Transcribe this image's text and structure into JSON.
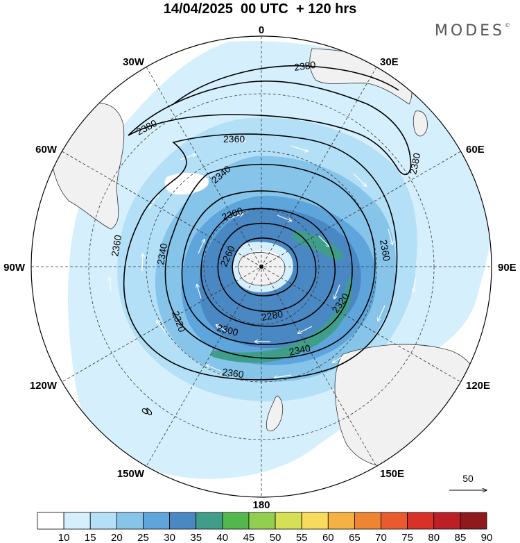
{
  "title": "14/04/2025  00 UTC  + 120 hrs",
  "brand": "MODES",
  "brand_mark": "©",
  "longitude_labels": {
    "n0": "0",
    "n30e": "30E",
    "n60e": "60E",
    "n90e": "90E",
    "n120e": "120E",
    "n150e": "150E",
    "n180": "180",
    "n150w": "150W",
    "n120w": "120W",
    "n90w": "90W",
    "n60w": "60W",
    "n30w": "30W"
  },
  "contour_labels": {
    "c2380a": "2380",
    "c2380b": "2380",
    "c2380c": "2380",
    "c2360a": "2360",
    "c2360b": "2360",
    "c2360c": "2360",
    "c2360d": "2360",
    "c2340a": "2340",
    "c2340b": "2340",
    "c2340c": "2340",
    "c2320a": "2320",
    "c2320b": "2320",
    "c2300a": "2300",
    "c2300b": "2300",
    "c2280": "2280",
    "c2260": "2260",
    "c0": "0"
  },
  "vector_reference": {
    "value": "50"
  },
  "colorbar": {
    "labels": [
      "10",
      "15",
      "20",
      "25",
      "30",
      "35",
      "40",
      "45",
      "50",
      "55",
      "60",
      "65",
      "70",
      "75",
      "80",
      "85",
      "90"
    ],
    "colors": [
      "#ffffff",
      "#d5effc",
      "#b3e0f7",
      "#86c4ea",
      "#5ea5db",
      "#4a88c4",
      "#3f9e8a",
      "#52b84e",
      "#93cf4f",
      "#d6e055",
      "#f6dc5a",
      "#f5b142",
      "#ee8531",
      "#e95b2f",
      "#d83228",
      "#bd1f26",
      "#8f1a1c"
    ]
  },
  "legend_colors": {
    "ocean": "#ffffff",
    "land": "#f1f1f1",
    "contour": "#000000",
    "vector": "#ffffff"
  }
}
